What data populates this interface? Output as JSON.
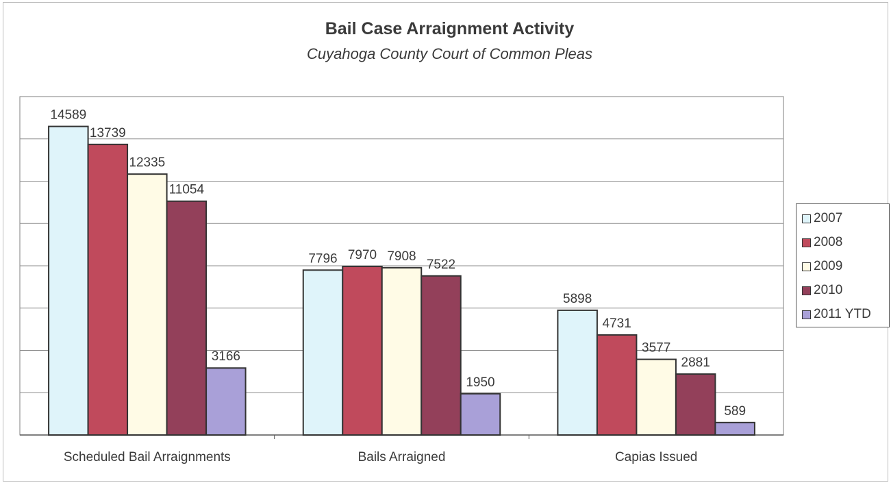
{
  "chart_data": {
    "type": "bar",
    "title": "Bail Case Arraignment Activity",
    "subtitle": "Cuyahoga County Court of Common Pleas",
    "categories": [
      "Scheduled Bail Arraignments",
      "Bails Arraigned",
      "Capias Issued"
    ],
    "series": [
      {
        "name": "2007",
        "color": "#dff4fa",
        "values": [
          14589,
          7796,
          5898
        ]
      },
      {
        "name": "2008",
        "color": "#c04a5c",
        "values": [
          13739,
          7970,
          4731
        ]
      },
      {
        "name": "2009",
        "color": "#fffbe6",
        "values": [
          12335,
          7908,
          3577
        ]
      },
      {
        "name": "2010",
        "color": "#93405a",
        "values": [
          11054,
          7522,
          2881
        ]
      },
      {
        "name": "2011 YTD",
        "color": "#a9a0d8",
        "values": [
          3166,
          1950,
          589
        ]
      }
    ],
    "ylim": [
      0,
      16000
    ],
    "ytick_step": 2000,
    "grid": true,
    "legend": "right",
    "data_labels": true
  }
}
